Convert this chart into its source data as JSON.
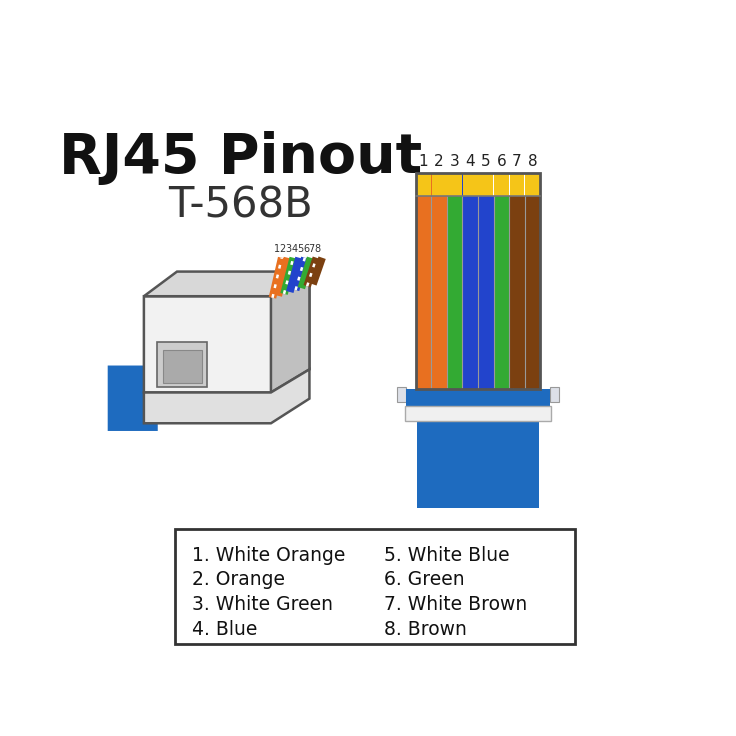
{
  "title_line1": "RJ45 Pinout",
  "title_line2": "T-568B",
  "bg_color": "#ffffff",
  "pin_labels": [
    "1",
    "2",
    "3",
    "4",
    "5",
    "6",
    "7",
    "8"
  ],
  "wire_colors": [
    {
      "main": "#e87020",
      "stripe": "#ffffff",
      "type": "stripe"
    },
    {
      "main": "#e87020",
      "stripe": null,
      "type": "solid"
    },
    {
      "main": "#33aa33",
      "stripe": "#ffffff",
      "type": "stripe"
    },
    {
      "main": "#2244cc",
      "stripe": null,
      "type": "solid"
    },
    {
      "main": "#2244cc",
      "stripe": "#ffffff",
      "type": "stripe"
    },
    {
      "main": "#33aa33",
      "stripe": null,
      "type": "solid"
    },
    {
      "main": "#7b4010",
      "stripe": "#ffffff",
      "type": "stripe"
    },
    {
      "main": "#7b4010",
      "stripe": null,
      "type": "solid"
    }
  ],
  "legend_left": [
    "1. White Orange",
    "2. Orange",
    "3. White Green",
    "4. Blue"
  ],
  "legend_right": [
    "5. White Blue",
    "6. Green",
    "7. White Brown",
    "8. Brown"
  ],
  "cable_color": "#1e6bbf",
  "gold_color": "#f5c518"
}
